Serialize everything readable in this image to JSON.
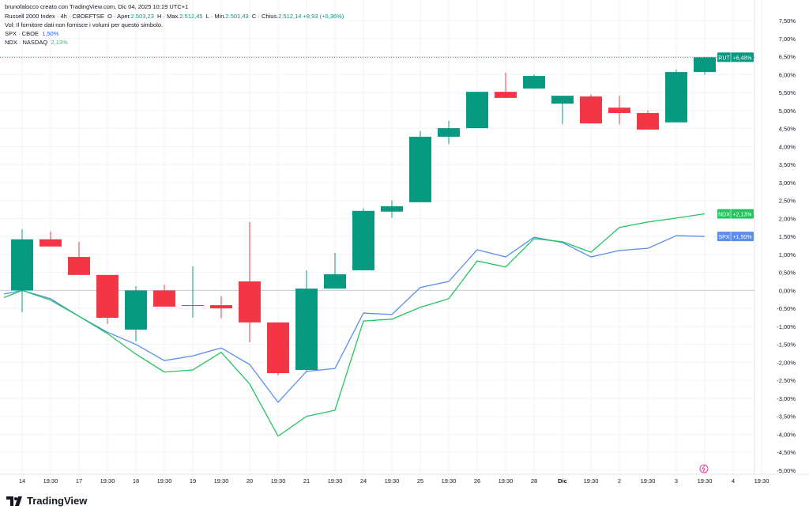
{
  "header": {
    "credit": "brunofalocco creato con TradingView.com, Dic 04, 2025 10:19 UTC+1",
    "symbol": "Russell 2000 Index · 4h · CBOEFTSE",
    "o_label": "O · Aper.",
    "o": "2.503,23",
    "h_label": "H · Max.",
    "h": "2.512,45",
    "l_label": "L · Min.",
    "l": "2.501,43",
    "c_label": "C · Chius.",
    "c": "2.512,14",
    "chg": "+8,93 (+0,36%)",
    "vol": "Vol: Il fornitore dati non fornisce i volumi per questo simbolo.",
    "spx_label": "SPX · CBOE",
    "spx_val": "1,50%",
    "ndx_label": "NDX · NASDAQ",
    "ndx_val": "2,13%"
  },
  "logo": "TradingView",
  "colors": {
    "up": "#089981",
    "down": "#f23645",
    "spx": "#5b8def",
    "ndx": "#22c55e"
  },
  "chart_data": {
    "type": "candlestick+line",
    "ylim": [
      -5,
      7.5
    ],
    "y_ticks": [
      "7,50%",
      "7,00%",
      "6,50%",
      "6,00%",
      "5,50%",
      "5,00%",
      "4,50%",
      "4,00%",
      "3,50%",
      "3,00%",
      "2,50%",
      "2,00%",
      "1,50%",
      "1,00%",
      "0,50%",
      "0,00%",
      "-0,50%",
      "-1,00%",
      "-1,50%",
      "-2,00%",
      "-2,50%",
      "-3,00%",
      "-3,50%",
      "-4,00%",
      "-4,50%",
      "-5,00%"
    ],
    "x_ticks": [
      "14",
      "19:30",
      "17",
      "19:30",
      "18",
      "19:30",
      "19",
      "19:30",
      "20",
      "19:30",
      "21",
      "19:30",
      "24",
      "19:30",
      "25",
      "19:30",
      "26",
      "19:30",
      "28",
      "Dic",
      "19:30",
      "2",
      "19:30",
      "3",
      "19:30",
      "4",
      "19:30"
    ],
    "candles": [
      [
        0,
        1.7,
        -0.6,
        1.42
      ],
      [
        1.42,
        1.64,
        1.22,
        1.22
      ],
      [
        0.93,
        1.35,
        0.43,
        0.43
      ],
      [
        0.43,
        0.43,
        -0.93,
        -0.76
      ],
      [
        -1.09,
        0.12,
        -1.42,
        0
      ],
      [
        0,
        0.16,
        -0.45,
        -0.45
      ],
      [
        -0.41,
        0.67,
        -0.76,
        -0.41
      ],
      [
        -0.41,
        -0.16,
        -0.78,
        -0.5
      ],
      [
        0.25,
        1.9,
        -1.44,
        -0.89
      ],
      [
        -0.89,
        -0.89,
        -2.36,
        -2.3
      ],
      [
        -2.21,
        0.56,
        -2.26,
        0.05
      ],
      [
        0.05,
        1.04,
        0.05,
        0.45
      ],
      [
        0.56,
        2.28,
        0.56,
        2.21
      ],
      [
        2.19,
        2.5,
        2.02,
        2.34
      ],
      [
        2.45,
        4.43,
        2.45,
        4.27
      ],
      [
        4.27,
        4.71,
        4.07,
        4.51
      ],
      [
        4.51,
        5.52,
        4.51,
        5.52
      ],
      [
        5.52,
        6.05,
        5.35,
        5.35
      ],
      [
        5.61,
        6.0,
        5.61,
        5.96
      ],
      [
        5.19,
        5.41,
        4.62,
        5.41
      ],
      [
        5.39,
        5.45,
        4.64,
        4.64
      ],
      [
        5.08,
        5.41,
        4.62,
        4.93
      ],
      [
        4.93,
        5.0,
        4.47,
        4.47
      ],
      [
        4.67,
        6.14,
        4.67,
        6.07
      ],
      [
        6.07,
        6.48,
        6.0,
        6.48
      ]
    ],
    "series": [
      {
        "name": "SPX",
        "last_label": "+1,50%",
        "values": [
          -0.1,
          0,
          -0.23,
          -0.72,
          -1.16,
          -1.5,
          -1.95,
          -1.82,
          -1.6,
          -2.06,
          -3.11,
          -2.25,
          -2.17,
          -0.63,
          -0.67,
          0.08,
          0.25,
          1.13,
          0.93,
          1.48,
          1.33,
          0.93,
          1.11,
          1.17,
          1.52,
          1.5
        ]
      },
      {
        "name": "NDX",
        "last_label": "+2,13%",
        "values": [
          -0.2,
          0,
          -0.27,
          -0.72,
          -1.2,
          -1.77,
          -2.27,
          -2.21,
          -1.72,
          -2.6,
          -4.05,
          -3.5,
          -3.33,
          -0.85,
          -0.8,
          -0.47,
          -0.23,
          0.82,
          0.65,
          1.44,
          1.35,
          1.06,
          1.75,
          1.9,
          2.01,
          2.13
        ]
      }
    ],
    "rut": {
      "name": "RUT",
      "last_label": "+6,48%",
      "value": 6.48
    }
  }
}
